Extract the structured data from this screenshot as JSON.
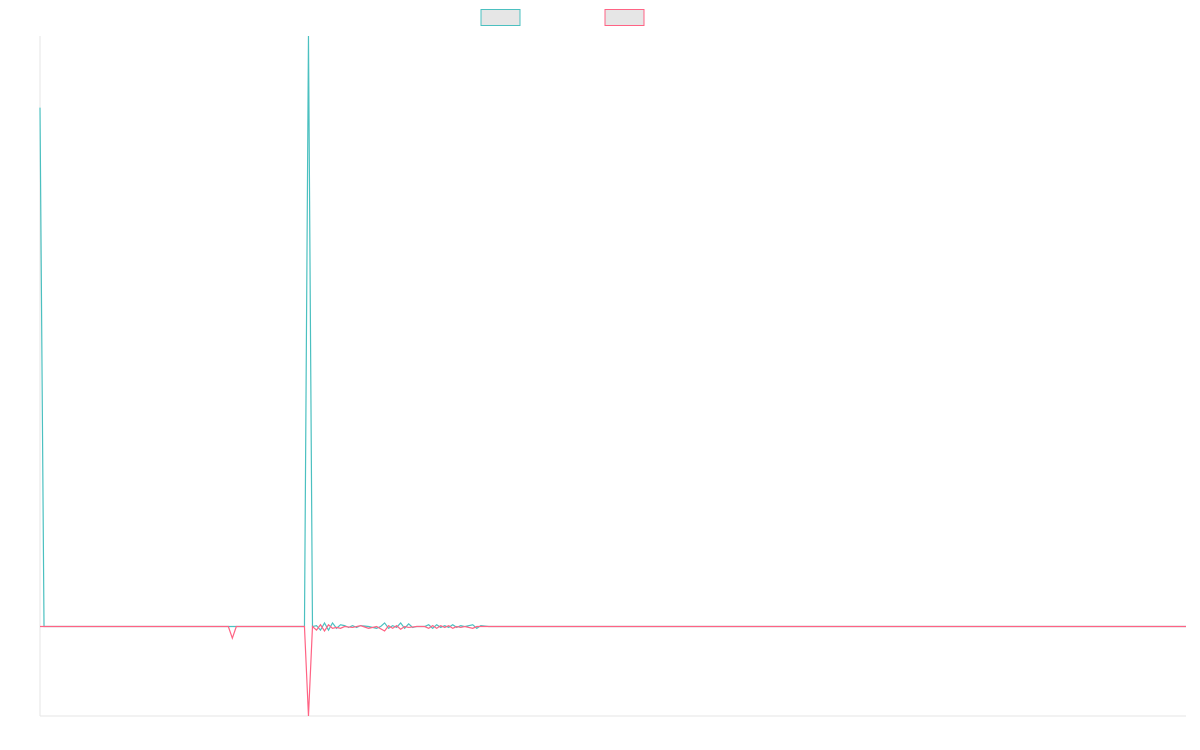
{
  "chart_data": {
    "type": "line",
    "title": "",
    "xlabel": "",
    "ylabel": "",
    "grid": false,
    "legend_position": "top-center",
    "ylim": [
      -1,
      6.6
    ],
    "xlim": [
      0,
      286
    ],
    "series": [
      {
        "name": "",
        "color": "#4bc0c0",
        "points": [
          [
            0,
            5.8
          ],
          [
            1,
            0
          ],
          [
            60,
            0
          ],
          [
            66,
            0
          ],
          [
            67,
            6.6
          ],
          [
            68,
            0
          ],
          [
            69,
            0.01
          ],
          [
            70,
            -0.04
          ],
          [
            71,
            0.04
          ],
          [
            72,
            -0.04
          ],
          [
            73,
            0.04
          ],
          [
            74,
            -0.02
          ],
          [
            75,
            0.02
          ],
          [
            76,
            0.01
          ],
          [
            77,
            -0.01
          ],
          [
            78,
            0.01
          ],
          [
            79,
            -0.01
          ],
          [
            80,
            0.01
          ],
          [
            82,
            0
          ],
          [
            84,
            -0.02
          ],
          [
            85,
            0
          ],
          [
            86,
            0.04
          ],
          [
            87,
            -0.02
          ],
          [
            88,
            0.01
          ],
          [
            89,
            -0.01
          ],
          [
            90,
            0.04
          ],
          [
            91,
            -0.02
          ],
          [
            92,
            0.03
          ],
          [
            93,
            -0.01
          ],
          [
            94,
            0
          ],
          [
            96,
            0
          ],
          [
            97,
            0.02
          ],
          [
            98,
            -0.02
          ],
          [
            99,
            0.02
          ],
          [
            100,
            -0.01
          ],
          [
            101,
            0.01
          ],
          [
            102,
            -0.01
          ],
          [
            103,
            0.02
          ],
          [
            104,
            -0.01
          ],
          [
            105,
            0.01
          ],
          [
            106,
            0
          ],
          [
            108,
            0.02
          ],
          [
            109,
            -0.02
          ],
          [
            110,
            0.01
          ],
          [
            112,
            0
          ],
          [
            286,
            0
          ]
        ]
      },
      {
        "name": "",
        "color": "#ff6384",
        "points": [
          [
            0,
            0
          ],
          [
            47,
            0
          ],
          [
            48,
            -0.13
          ],
          [
            49,
            0
          ],
          [
            66,
            0
          ],
          [
            67,
            -1
          ],
          [
            68,
            0
          ],
          [
            69,
            -0.04
          ],
          [
            70,
            0.02
          ],
          [
            71,
            -0.05
          ],
          [
            72,
            0.02
          ],
          [
            73,
            -0.02
          ],
          [
            74,
            -0.01
          ],
          [
            75,
            -0.02
          ],
          [
            76,
            0
          ],
          [
            78,
            -0.01
          ],
          [
            80,
            0.01
          ],
          [
            82,
            -0.02
          ],
          [
            84,
            0
          ],
          [
            86,
            -0.05
          ],
          [
            87,
            0.01
          ],
          [
            88,
            -0.02
          ],
          [
            89,
            0.01
          ],
          [
            90,
            -0.03
          ],
          [
            91,
            0
          ],
          [
            92,
            -0.01
          ],
          [
            94,
            0
          ],
          [
            96,
            0
          ],
          [
            97,
            -0.02
          ],
          [
            98,
            0.01
          ],
          [
            99,
            -0.02
          ],
          [
            100,
            0.01
          ],
          [
            101,
            -0.01
          ],
          [
            102,
            0.01
          ],
          [
            103,
            -0.02
          ],
          [
            104,
            0
          ],
          [
            105,
            -0.01
          ],
          [
            106,
            0
          ],
          [
            108,
            -0.02
          ],
          [
            109,
            0
          ],
          [
            112,
            0
          ],
          [
            286,
            0
          ]
        ]
      }
    ]
  }
}
